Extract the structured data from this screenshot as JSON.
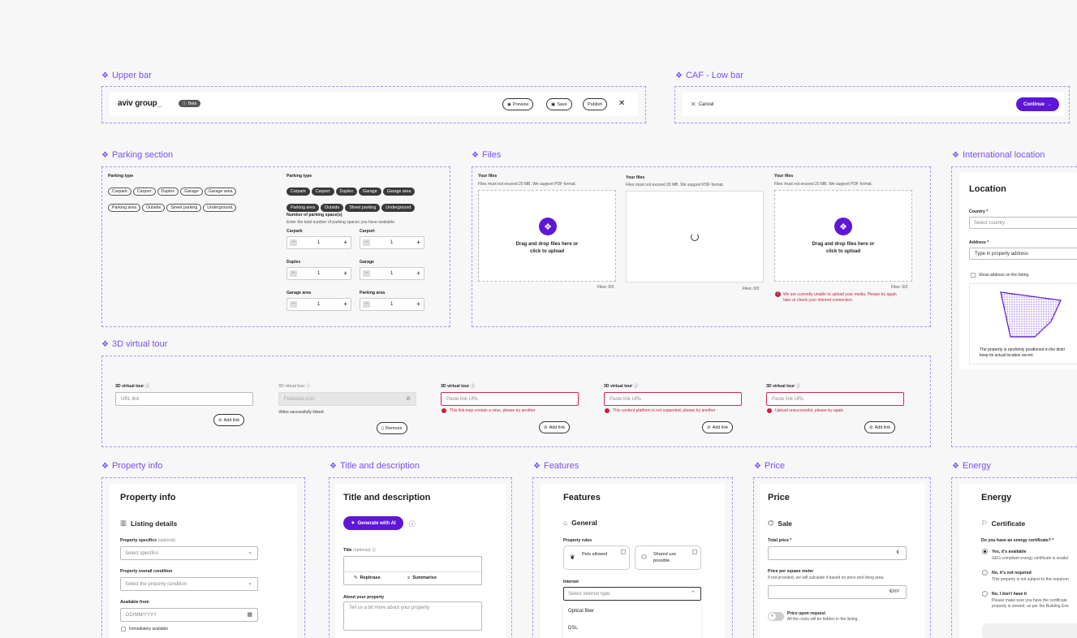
{
  "sections": {
    "upper_bar": "Upper bar",
    "caf_low_bar": "CAF - Low bar",
    "parking": "Parking section",
    "files": "Files",
    "intl_location": "International location",
    "virtual_tour": "3D virtual tour",
    "property_info": "Property info",
    "title_desc": "Title and description",
    "features": "Features",
    "price": "Price",
    "energy": "Energy"
  },
  "upper_bar": {
    "logo": "aviv group",
    "beta": "Beta",
    "preview": "Preview",
    "save": "Save",
    "publish": "Publish"
  },
  "low_bar": {
    "cancel": "Cancel",
    "continue": "Continue"
  },
  "parking": {
    "type_label": "Parking type",
    "options": [
      "Carpark",
      "Carport",
      "Duplex",
      "Garage",
      "Garage area",
      "Parking area",
      "Outside",
      "Street parking",
      "Underground"
    ],
    "number_label": "Number of parking space(s)",
    "number_hint": "Enter the total number of parking spaces you have available.",
    "steppers": [
      {
        "label": "Carpark",
        "value": "1"
      },
      {
        "label": "Carport",
        "value": "1"
      },
      {
        "label": "Duplex",
        "value": "1"
      },
      {
        "label": "Garage",
        "value": "1"
      },
      {
        "label": "Garage area",
        "value": "1"
      },
      {
        "label": "Parking area",
        "value": "1"
      }
    ]
  },
  "files": {
    "title": "Your files",
    "hint": "Files must not exceed 20 MB. We support PDF format.",
    "drop_line1": "Drag and drop files here or",
    "drop_line2": "click to upload",
    "count": "Files: 0/3",
    "error_line1": "We are currently unable to upload your media. Please try again",
    "error_line2": "later or check your internet connection."
  },
  "location": {
    "title": "Location",
    "country_label": "Country *",
    "country_placeholder": "Select country",
    "address_label": "Address *",
    "address_placeholder": "Type in property address",
    "show_address": "Show address on the listing",
    "note_line1": "The property is randomly positioned in the distri",
    "note_line2": "keep its actual location secret."
  },
  "tour": {
    "label": "3D virtual tour",
    "url_placeholder": "URL link",
    "linked_value": "Feelstate.com",
    "linked_msg": "Video successfully linked",
    "paste_placeholder": "Paste link URL",
    "add_link": "Add link",
    "remove": "Remove",
    "err_virus": "This link may contain a virus, please try another",
    "err_platform": "This content platform is not supported, please try another",
    "err_upload": "Upload unsuccessful, please try again"
  },
  "property_info": {
    "title": "Property info",
    "subtitle": "Listing details",
    "specifics_label": "Property specifics",
    "optional": "(optional)",
    "specifics_placeholder": "Select specifics",
    "condition_label": "Property overall condition",
    "condition_placeholder": "Select the property condition",
    "available_label": "Available from",
    "date_placeholder": "DD/MM/YYYY",
    "immediately": "Immediately available"
  },
  "title_desc": {
    "title": "Title and description",
    "ai_button": "Generate with AI",
    "title_label": "Title",
    "optional": "(optional)",
    "rephrase": "Rephrase",
    "summarise": "Summarise",
    "about_label": "About your property",
    "about_placeholder": "Tell us a bit more about your property"
  },
  "features": {
    "title": "Features",
    "subtitle": "General",
    "rules_label": "Property rules",
    "pets": "Pets allowed",
    "shared": "Shared use possible",
    "internet_label": "Internet",
    "internet_placeholder": "Select internet type",
    "options": [
      "Optical fiber",
      "DSL"
    ]
  },
  "price": {
    "title": "Price",
    "subtitle": "Sale",
    "total_label": "Total price *",
    "total_unit": "€",
    "sqm_label": "Price per square meter",
    "sqm_hint": "If not provided, we will calculate it based on price and living area.",
    "sqm_unit": "€/m²",
    "upon_request": "Price upon request",
    "upon_hint": "All the costs will be hidden in the listing."
  },
  "energy": {
    "title": "Energy",
    "subtitle": "Certificate",
    "question": "Do you have an energy certificate? *",
    "opt1": "Yes, it's available",
    "opt1_sub": "GEG compliant energy certificate is availal",
    "opt2": "No, it's not required",
    "opt2_sub": "This property is not subject to the requirem",
    "opt3": "No, I don't have it",
    "opt3_sub1": "Please make sure you have the certificate",
    "opt3_sub2": "property is viewed, as per the Building Ene"
  }
}
